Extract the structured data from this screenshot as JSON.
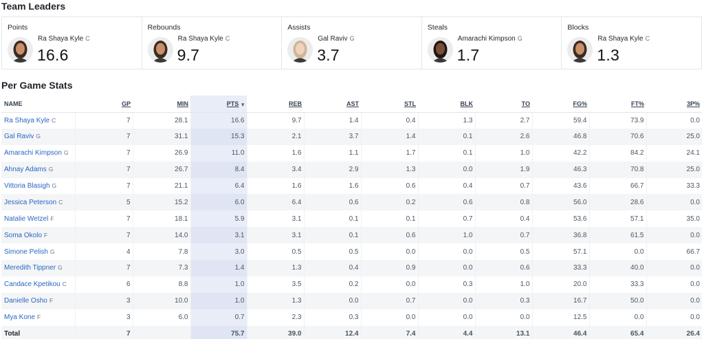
{
  "team_leaders": {
    "title": "Team Leaders",
    "cards": [
      {
        "category": "Points",
        "player": "Ra Shaya Kyle",
        "pos": "C",
        "value": "16.6"
      },
      {
        "category": "Rebounds",
        "player": "Ra Shaya Kyle",
        "pos": "C",
        "value": "9.7"
      },
      {
        "category": "Assists",
        "player": "Gal Raviv",
        "pos": "G",
        "value": "3.7"
      },
      {
        "category": "Steals",
        "player": "Amarachi Kimpson",
        "pos": "G",
        "value": "1.7"
      },
      {
        "category": "Blocks",
        "player": "Ra Shaya Kyle",
        "pos": "C",
        "value": "1.3"
      }
    ]
  },
  "per_game": {
    "title": "Per Game Stats",
    "sort_icon": "chevron-down-icon",
    "headers": [
      "NAME",
      "GP",
      "MIN",
      "PTS",
      "REB",
      "AST",
      "STL",
      "BLK",
      "TO",
      "FG%",
      "FT%",
      "3P%"
    ],
    "rows": [
      {
        "name": "Ra Shaya Kyle",
        "pos": "C",
        "stats": [
          "7",
          "28.1",
          "16.6",
          "9.7",
          "1.4",
          "0.4",
          "1.3",
          "2.7",
          "59.4",
          "73.9",
          "0.0"
        ]
      },
      {
        "name": "Gal Raviv",
        "pos": "G",
        "stats": [
          "7",
          "31.1",
          "15.3",
          "2.1",
          "3.7",
          "1.4",
          "0.1",
          "2.6",
          "46.8",
          "70.6",
          "25.0"
        ]
      },
      {
        "name": "Amarachi Kimpson",
        "pos": "G",
        "stats": [
          "7",
          "26.9",
          "11.0",
          "1.6",
          "1.1",
          "1.7",
          "0.1",
          "1.0",
          "42.2",
          "84.2",
          "24.1"
        ]
      },
      {
        "name": "Ahnay Adams",
        "pos": "G",
        "stats": [
          "7",
          "26.7",
          "8.4",
          "3.4",
          "2.9",
          "1.3",
          "0.0",
          "1.9",
          "46.3",
          "70.8",
          "25.0"
        ]
      },
      {
        "name": "Vittoria Blasigh",
        "pos": "G",
        "stats": [
          "7",
          "21.1",
          "6.4",
          "1.6",
          "1.6",
          "0.6",
          "0.4",
          "0.7",
          "43.6",
          "66.7",
          "33.3"
        ]
      },
      {
        "name": "Jessica Peterson",
        "pos": "C",
        "stats": [
          "5",
          "15.2",
          "6.0",
          "6.4",
          "0.6",
          "0.2",
          "0.6",
          "0.8",
          "56.0",
          "28.6",
          "0.0"
        ]
      },
      {
        "name": "Natalie Wetzel",
        "pos": "F",
        "stats": [
          "7",
          "18.1",
          "5.9",
          "3.1",
          "0.1",
          "0.1",
          "0.7",
          "0.4",
          "53.6",
          "57.1",
          "35.0"
        ]
      },
      {
        "name": "Soma Okolo",
        "pos": "F",
        "stats": [
          "7",
          "14.0",
          "3.1",
          "3.1",
          "0.1",
          "0.6",
          "1.0",
          "0.7",
          "36.8",
          "61.5",
          "0.0"
        ]
      },
      {
        "name": "Simone Pelish",
        "pos": "G",
        "stats": [
          "4",
          "7.8",
          "3.0",
          "0.5",
          "0.5",
          "0.0",
          "0.0",
          "0.5",
          "57.1",
          "0.0",
          "66.7"
        ]
      },
      {
        "name": "Meredith Tippner",
        "pos": "G",
        "stats": [
          "7",
          "7.3",
          "1.4",
          "1.3",
          "0.4",
          "0.9",
          "0.0",
          "0.6",
          "33.3",
          "40.0",
          "0.0"
        ]
      },
      {
        "name": "Candace Kpetikou",
        "pos": "C",
        "stats": [
          "6",
          "8.8",
          "1.0",
          "3.5",
          "0.2",
          "0.0",
          "0.3",
          "1.0",
          "20.0",
          "33.3",
          "0.0"
        ]
      },
      {
        "name": "Danielle Osho",
        "pos": "F",
        "stats": [
          "3",
          "10.0",
          "1.0",
          "1.3",
          "0.0",
          "0.7",
          "0.0",
          "0.3",
          "16.7",
          "50.0",
          "0.0"
        ]
      },
      {
        "name": "Mya Kone",
        "pos": "F",
        "stats": [
          "3",
          "6.0",
          "0.7",
          "2.3",
          "0.3",
          "0.0",
          "0.0",
          "0.0",
          "12.5",
          "0.0",
          "0.0"
        ]
      }
    ],
    "total": {
      "label": "Total",
      "stats": [
        "7",
        "",
        "75.7",
        "39.0",
        "12.4",
        "7.4",
        "4.4",
        "13.1",
        "46.4",
        "65.4",
        "26.4"
      ]
    }
  }
}
